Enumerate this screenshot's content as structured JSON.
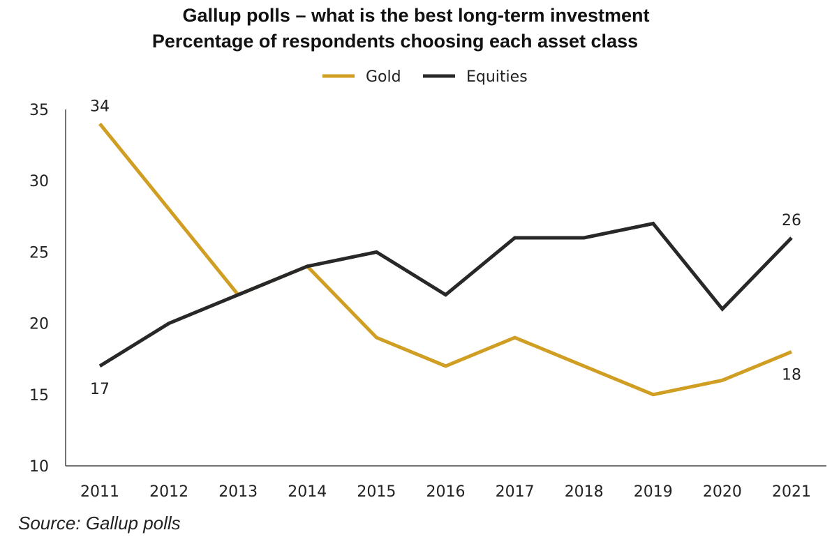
{
  "chart_data": {
    "type": "line",
    "title": "Gallup polls – what is the best long-term investment",
    "subtitle": "Percentage of respondents choosing each asset class",
    "categories": [
      "2011",
      "2012",
      "2013",
      "2014",
      "2015",
      "2016",
      "2017",
      "2018",
      "2019",
      "2020",
      "2021"
    ],
    "series": [
      {
        "name": "Gold",
        "color": "#D09E22",
        "values": [
          34,
          28,
          22,
          24,
          19,
          17,
          19,
          17,
          15,
          16,
          18
        ]
      },
      {
        "name": "Equities",
        "color": "#282828",
        "values": [
          17,
          20,
          22,
          24,
          25,
          22,
          26,
          26,
          27,
          21,
          26
        ]
      }
    ],
    "ylim": [
      10,
      35
    ],
    "yticks": [
      10,
      15,
      20,
      25,
      30,
      35
    ],
    "grid": false,
    "legend": "top-center",
    "annotations": [
      {
        "series": "Gold",
        "category": "2011",
        "text": "34"
      },
      {
        "series": "Equities",
        "category": "2011",
        "text": "17"
      },
      {
        "series": "Equities",
        "category": "2021",
        "text": "26"
      },
      {
        "series": "Gold",
        "category": "2021",
        "text": "18"
      }
    ],
    "source": "Source: Gallup polls"
  }
}
